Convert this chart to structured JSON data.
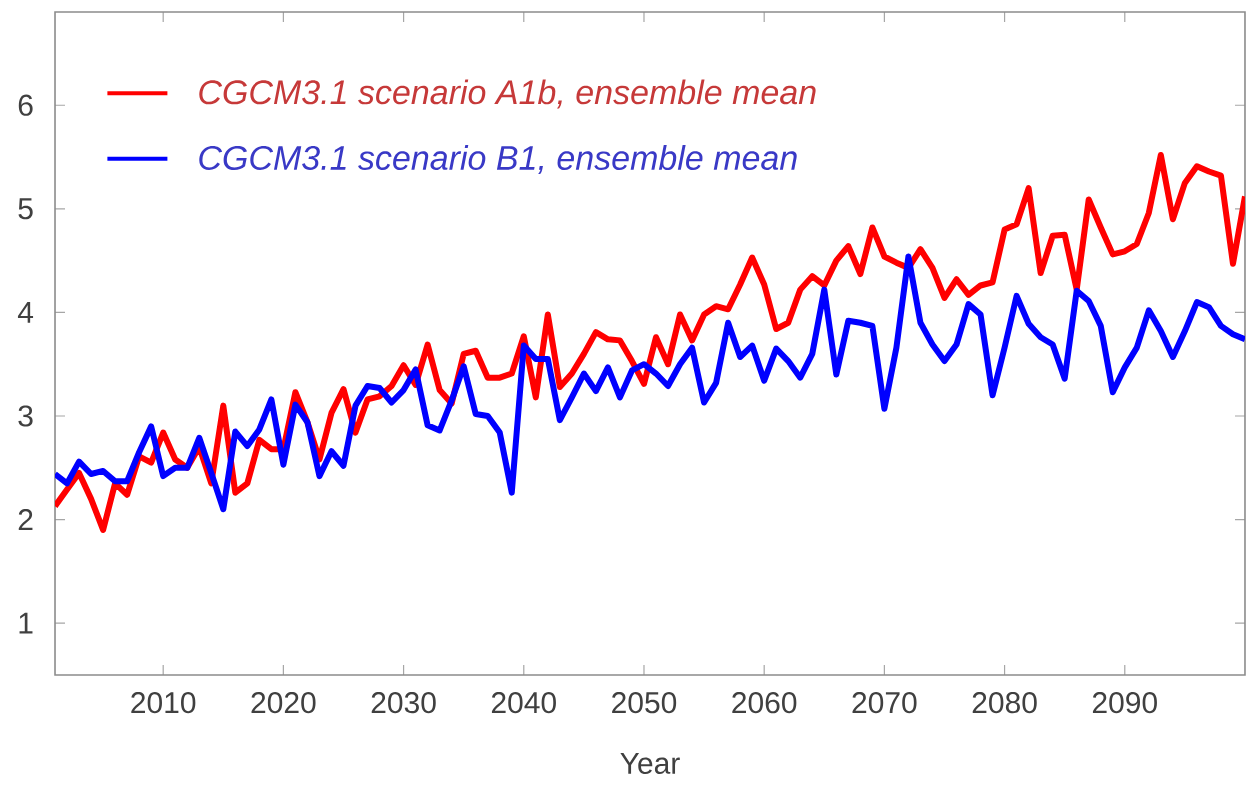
{
  "chart_data": {
    "type": "line",
    "xlabel": "Year",
    "x": [
      2001,
      2002,
      2003,
      2004,
      2005,
      2006,
      2007,
      2008,
      2009,
      2010,
      2011,
      2012,
      2013,
      2014,
      2015,
      2016,
      2017,
      2018,
      2019,
      2020,
      2021,
      2022,
      2023,
      2024,
      2025,
      2026,
      2027,
      2028,
      2029,
      2030,
      2031,
      2032,
      2033,
      2034,
      2035,
      2036,
      2037,
      2038,
      2039,
      2040,
      2041,
      2042,
      2043,
      2044,
      2045,
      2046,
      2047,
      2048,
      2049,
      2050,
      2051,
      2052,
      2053,
      2054,
      2055,
      2056,
      2057,
      2058,
      2059,
      2060,
      2061,
      2062,
      2063,
      2064,
      2065,
      2066,
      2067,
      2068,
      2069,
      2070,
      2071,
      2072,
      2073,
      2074,
      2075,
      2076,
      2077,
      2078,
      2079,
      2080,
      2081,
      2082,
      2083,
      2084,
      2085,
      2086,
      2087,
      2088,
      2089,
      2090,
      2091,
      2092,
      2093,
      2094,
      2095,
      2096,
      2097,
      2098,
      2099,
      2100
    ],
    "xlim": [
      2001,
      2100
    ],
    "ylim": [
      0.5,
      6.9
    ],
    "xticks": [
      2010,
      2020,
      2030,
      2040,
      2050,
      2060,
      2070,
      2080,
      2090
    ],
    "yticks": [
      1,
      2,
      3,
      4,
      5,
      6
    ],
    "legend": "top left",
    "marker": "none",
    "line_style": "solid",
    "series": [
      {
        "name": "CGCM3.1 scenario A1b, ensemble mean",
        "color": "#ff0000",
        "values": [
          2.13,
          2.29,
          2.45,
          2.2,
          1.9,
          2.35,
          2.24,
          2.61,
          2.55,
          2.84,
          2.58,
          2.5,
          2.7,
          2.35,
          3.1,
          2.26,
          2.35,
          2.77,
          2.68,
          2.68,
          3.23,
          2.94,
          2.58,
          3.03,
          3.26,
          2.84,
          3.16,
          3.19,
          3.29,
          3.49,
          3.3,
          3.69,
          3.25,
          3.12,
          3.6,
          3.63,
          3.37,
          3.37,
          3.41,
          3.77,
          3.18,
          3.98,
          3.28,
          3.41,
          3.6,
          3.81,
          3.74,
          3.73,
          3.53,
          3.31,
          3.76,
          3.5,
          3.98,
          3.73,
          3.98,
          4.06,
          4.03,
          4.27,
          4.53,
          4.27,
          3.84,
          3.9,
          4.22,
          4.35,
          4.26,
          4.5,
          4.64,
          4.37,
          4.82,
          4.54,
          4.48,
          4.43,
          4.61,
          4.43,
          4.14,
          4.32,
          4.17,
          4.26,
          4.29,
          4.8,
          4.85,
          5.2,
          4.38,
          4.74,
          4.75,
          4.22,
          5.09,
          4.82,
          4.56,
          4.59,
          4.66,
          4.96,
          5.52,
          4.9,
          5.25,
          5.41,
          5.36,
          5.32,
          4.47,
          5.12
        ]
      },
      {
        "name": "CGCM3.1 scenario B1, ensemble mean",
        "color": "#0000ff",
        "values": [
          2.44,
          2.35,
          2.56,
          2.44,
          2.47,
          2.37,
          2.37,
          2.65,
          2.9,
          2.42,
          2.5,
          2.5,
          2.79,
          2.45,
          2.1,
          2.85,
          2.71,
          2.87,
          3.16,
          2.53,
          3.11,
          2.94,
          2.42,
          2.66,
          2.52,
          3.1,
          3.29,
          3.27,
          3.13,
          3.25,
          3.45,
          2.91,
          2.86,
          3.15,
          3.48,
          3.02,
          3.0,
          2.84,
          2.26,
          3.68,
          3.55,
          3.55,
          2.96,
          3.18,
          3.41,
          3.24,
          3.47,
          3.18,
          3.44,
          3.5,
          3.41,
          3.29,
          3.5,
          3.66,
          3.13,
          3.32,
          3.9,
          3.57,
          3.68,
          3.34,
          3.65,
          3.53,
          3.37,
          3.6,
          4.22,
          3.4,
          3.92,
          3.9,
          3.87,
          3.07,
          3.66,
          4.54,
          3.9,
          3.69,
          3.53,
          3.69,
          4.08,
          3.98,
          3.2,
          3.66,
          4.16,
          3.89,
          3.76,
          3.69,
          3.36,
          4.21,
          4.11,
          3.87,
          3.23,
          3.47,
          3.66,
          4.02,
          3.82,
          3.57,
          3.82,
          4.1,
          4.05,
          3.87,
          3.79,
          3.74
        ]
      }
    ]
  }
}
